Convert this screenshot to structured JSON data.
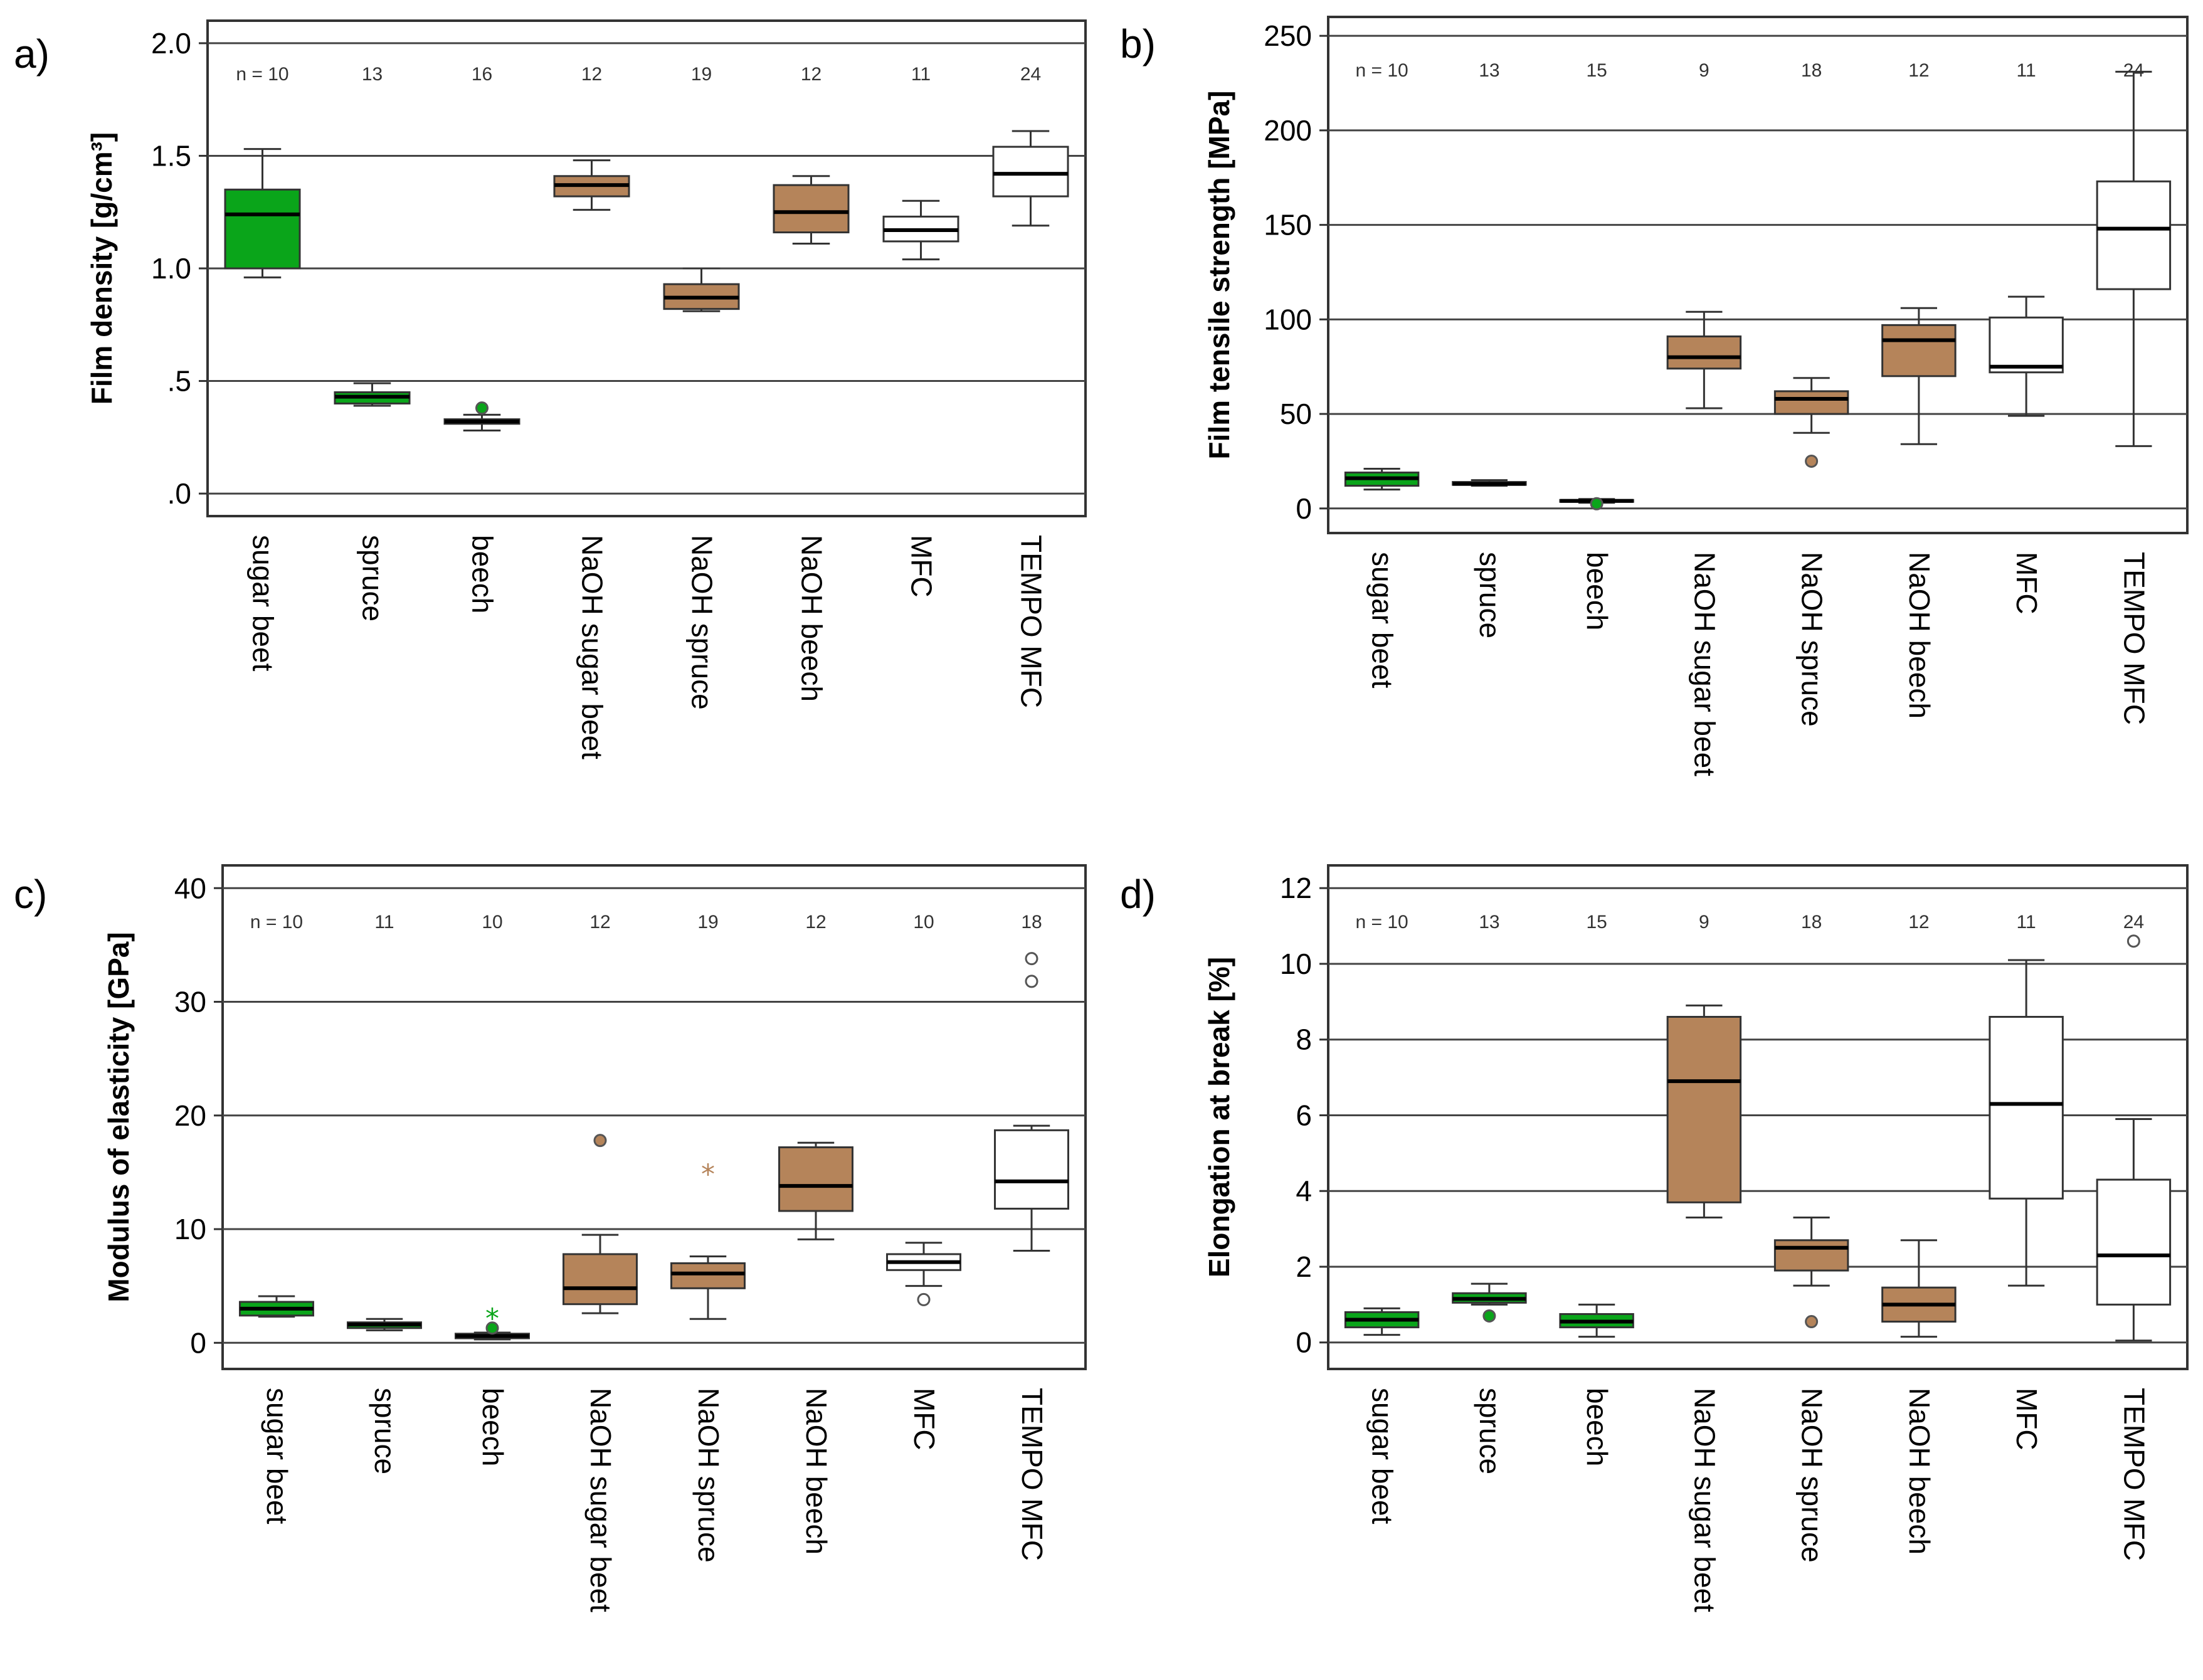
{
  "colors": {
    "green": "#0aa51a",
    "brown": "#b5845a",
    "white": "#ffffff"
  },
  "chart_data": [
    {
      "type": "boxplot",
      "panel": "a)",
      "ylabel": "Film density [g/cm³]",
      "ylim": [
        -0.1,
        2.1
      ],
      "yticks": [
        0,
        0.5,
        1.0,
        1.5,
        2.0
      ],
      "ytick_labels": [
        ".0",
        ".5",
        "1.0",
        "1.5",
        "2.0"
      ],
      "grid": true,
      "categories": [
        "sugar beet",
        "spruce",
        "beech",
        "NaOH sugar beet",
        "NaOH spruce",
        "NaOH beech",
        "MFC",
        "TEMPO MFC"
      ],
      "n_labels": [
        "n = 10",
        "13",
        "16",
        "12",
        "19",
        "12",
        "11",
        "24"
      ],
      "box_colors": [
        "green",
        "green",
        "green",
        "brown",
        "brown",
        "brown",
        "white",
        "white"
      ],
      "boxes": [
        {
          "whisker_low": 0.96,
          "q1": 1.0,
          "median": 1.24,
          "q3": 1.35,
          "whisker_high": 1.53,
          "outliers": [],
          "extremes": []
        },
        {
          "whisker_low": 0.39,
          "q1": 0.4,
          "median": 0.43,
          "q3": 0.45,
          "whisker_high": 0.49,
          "outliers": [],
          "extremes": []
        },
        {
          "whisker_low": 0.28,
          "q1": 0.31,
          "median": 0.32,
          "q3": 0.33,
          "whisker_high": 0.35,
          "outliers": [
            0.38
          ],
          "extremes": []
        },
        {
          "whisker_low": 1.26,
          "q1": 1.32,
          "median": 1.37,
          "q3": 1.41,
          "whisker_high": 1.48,
          "outliers": [],
          "extremes": []
        },
        {
          "whisker_low": 0.81,
          "q1": 0.82,
          "median": 0.87,
          "q3": 0.93,
          "whisker_high": 1.0,
          "outliers": [],
          "extremes": []
        },
        {
          "whisker_low": 1.11,
          "q1": 1.16,
          "median": 1.25,
          "q3": 1.37,
          "whisker_high": 1.41,
          "outliers": [],
          "extremes": []
        },
        {
          "whisker_low": 1.04,
          "q1": 1.12,
          "median": 1.17,
          "q3": 1.23,
          "whisker_high": 1.3,
          "outliers": [],
          "extremes": []
        },
        {
          "whisker_low": 1.19,
          "q1": 1.32,
          "median": 1.42,
          "q3": 1.54,
          "whisker_high": 1.61,
          "outliers": [],
          "extremes": []
        }
      ]
    },
    {
      "type": "boxplot",
      "panel": "b)",
      "ylabel": "Film tensile strength [MPa]",
      "ylim": [
        -13,
        260
      ],
      "yticks": [
        0,
        50,
        100,
        150,
        200,
        250
      ],
      "ytick_labels": [
        "0",
        "50",
        "100",
        "150",
        "200",
        "250"
      ],
      "grid": true,
      "categories": [
        "sugar beet",
        "spruce",
        "beech",
        "NaOH sugar beet",
        "NaOH spruce",
        "NaOH beech",
        "MFC",
        "TEMPO MFC"
      ],
      "n_labels": [
        "n = 10",
        "13",
        "15",
        "9",
        "18",
        "12",
        "11",
        "24"
      ],
      "box_colors": [
        "green",
        "green",
        "green",
        "brown",
        "brown",
        "brown",
        "white",
        "white"
      ],
      "boxes": [
        {
          "whisker_low": 10,
          "q1": 12,
          "median": 16,
          "q3": 19,
          "whisker_high": 21,
          "outliers": [],
          "extremes": []
        },
        {
          "whisker_low": 12,
          "q1": 12.5,
          "median": 13,
          "q3": 14,
          "whisker_high": 15,
          "outliers": [],
          "extremes": []
        },
        {
          "whisker_low": 3,
          "q1": 3.5,
          "median": 4,
          "q3": 4.5,
          "whisker_high": 5,
          "outliers": [
            2.5
          ],
          "extremes": []
        },
        {
          "whisker_low": 53,
          "q1": 74,
          "median": 80,
          "q3": 91,
          "whisker_high": 104,
          "outliers": [],
          "extremes": []
        },
        {
          "whisker_low": 40,
          "q1": 50,
          "median": 58,
          "q3": 62,
          "whisker_high": 69,
          "outliers": [
            25
          ],
          "extremes": []
        },
        {
          "whisker_low": 34,
          "q1": 70,
          "median": 89,
          "q3": 97,
          "whisker_high": 106,
          "outliers": [],
          "extremes": []
        },
        {
          "whisker_low": 49,
          "q1": 72,
          "median": 75,
          "q3": 101,
          "whisker_high": 112,
          "outliers": [],
          "extremes": []
        },
        {
          "whisker_low": 33,
          "q1": 116,
          "median": 148,
          "q3": 173,
          "whisker_high": 231,
          "outliers": [],
          "extremes": []
        }
      ]
    },
    {
      "type": "boxplot",
      "panel": "c)",
      "ylabel": "Modulus of elasticity [GPa]",
      "ylim": [
        -2.3,
        42
      ],
      "yticks": [
        0,
        10,
        20,
        30,
        40
      ],
      "ytick_labels": [
        "0",
        "10",
        "20",
        "30",
        "40"
      ],
      "grid": true,
      "categories": [
        "sugar beet",
        "spruce",
        "beech",
        "NaOH sugar beet",
        "NaOH spruce",
        "NaOH beech",
        "MFC",
        "TEMPO MFC"
      ],
      "n_labels": [
        "n = 10",
        "11",
        "10",
        "12",
        "19",
        "12",
        "10",
        "18"
      ],
      "box_colors": [
        "green",
        "green",
        "green",
        "brown",
        "brown",
        "brown",
        "white",
        "white"
      ],
      "boxes": [
        {
          "whisker_low": 2.3,
          "q1": 2.4,
          "median": 3.0,
          "q3": 3.6,
          "whisker_high": 4.1,
          "outliers": [],
          "extremes": []
        },
        {
          "whisker_low": 1.1,
          "q1": 1.3,
          "median": 1.6,
          "q3": 1.8,
          "whisker_high": 2.1,
          "outliers": [],
          "extremes": []
        },
        {
          "whisker_low": 0.3,
          "q1": 0.4,
          "median": 0.6,
          "q3": 0.8,
          "whisker_high": 0.9,
          "outliers": [
            1.3
          ],
          "extremes": [
            2.3
          ]
        },
        {
          "whisker_low": 2.6,
          "q1": 3.4,
          "median": 4.8,
          "q3": 7.8,
          "whisker_high": 9.5,
          "outliers": [
            17.8
          ],
          "extremes": []
        },
        {
          "whisker_low": 2.1,
          "q1": 4.8,
          "median": 6.1,
          "q3": 7.0,
          "whisker_high": 7.6,
          "outliers": [],
          "extremes": [
            15.0
          ]
        },
        {
          "whisker_low": 9.1,
          "q1": 11.6,
          "median": 13.8,
          "q3": 17.2,
          "whisker_high": 17.6,
          "outliers": [],
          "extremes": []
        },
        {
          "whisker_low": 5.0,
          "q1": 6.4,
          "median": 7.1,
          "q3": 7.8,
          "whisker_high": 8.8,
          "outliers": [
            3.8
          ],
          "extremes": []
        },
        {
          "whisker_low": 8.1,
          "q1": 11.8,
          "median": 14.2,
          "q3": 18.7,
          "whisker_high": 19.1,
          "outliers": [
            31.8,
            33.8
          ],
          "extremes": []
        }
      ]
    },
    {
      "type": "boxplot",
      "panel": "d)",
      "ylabel": "Elongation at break [%]",
      "ylim": [
        -0.7,
        12.6
      ],
      "yticks": [
        0,
        2,
        4,
        6,
        8,
        10,
        12
      ],
      "ytick_labels": [
        "0",
        "2",
        "4",
        "6",
        "8",
        "10",
        "12"
      ],
      "grid": true,
      "categories": [
        "sugar beet",
        "spruce",
        "beech",
        "NaOH sugar beet",
        "NaOH spruce",
        "NaOH beech",
        "MFC",
        "TEMPO MFC"
      ],
      "n_labels": [
        "n = 10",
        "13",
        "15",
        "9",
        "18",
        "12",
        "11",
        "24"
      ],
      "box_colors": [
        "green",
        "green",
        "green",
        "brown",
        "brown",
        "brown",
        "white",
        "white"
      ],
      "boxes": [
        {
          "whisker_low": 0.2,
          "q1": 0.4,
          "median": 0.6,
          "q3": 0.8,
          "whisker_high": 0.9,
          "outliers": [],
          "extremes": []
        },
        {
          "whisker_low": 1.0,
          "q1": 1.05,
          "median": 1.15,
          "q3": 1.3,
          "whisker_high": 1.55,
          "outliers": [
            0.7
          ],
          "extremes": []
        },
        {
          "whisker_low": 0.15,
          "q1": 0.4,
          "median": 0.55,
          "q3": 0.75,
          "whisker_high": 1.0,
          "outliers": [],
          "extremes": []
        },
        {
          "whisker_low": 3.3,
          "q1": 3.7,
          "median": 6.9,
          "q3": 8.6,
          "whisker_high": 8.9,
          "outliers": [],
          "extremes": []
        },
        {
          "whisker_low": 1.5,
          "q1": 1.9,
          "median": 2.5,
          "q3": 2.7,
          "whisker_high": 3.3,
          "outliers": [
            0.55
          ],
          "extremes": []
        },
        {
          "whisker_low": 0.15,
          "q1": 0.55,
          "median": 1.0,
          "q3": 1.45,
          "whisker_high": 2.7,
          "outliers": [],
          "extremes": []
        },
        {
          "whisker_low": 1.5,
          "q1": 3.8,
          "median": 6.3,
          "q3": 8.6,
          "whisker_high": 10.1,
          "outliers": [],
          "extremes": []
        },
        {
          "whisker_low": 0.05,
          "q1": 1.0,
          "median": 2.3,
          "q3": 4.3,
          "whisker_high": 5.9,
          "outliers": [
            10.6
          ],
          "extremes": []
        }
      ]
    }
  ]
}
